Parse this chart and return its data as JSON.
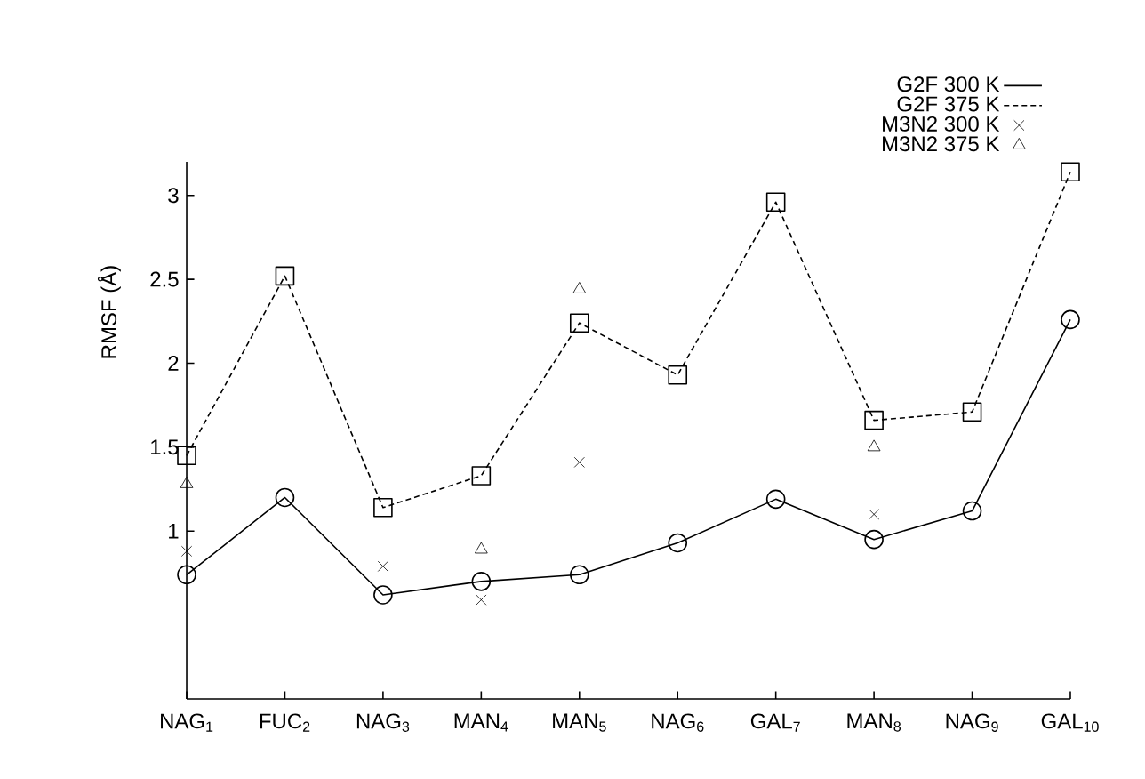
{
  "chart_data": {
    "type": "line",
    "ylabel": "RMSF (Å)",
    "categories": [
      "NAG$_{1}$",
      "FUC$_{2}$",
      "NAG$_{3}$",
      "MAN$_{4}$",
      "MAN$_{5}$",
      "NAG$_{6}$",
      "GAL$_{7}$",
      "MAN$_{8}$",
      "NAG$_{9}$",
      "GAL$_{10}$"
    ],
    "series": [
      {
        "name": "G2F 300 K",
        "color": "#000000",
        "marker": "circle",
        "line_style": "solid",
        "values": [
          0.74,
          1.2,
          0.62,
          0.7,
          0.74,
          0.93,
          1.19,
          0.95,
          1.12,
          2.26
        ]
      },
      {
        "name": "G2F 375 K",
        "color": "#000000",
        "marker": "square",
        "line_style": "dashed",
        "values": [
          1.45,
          2.52,
          1.14,
          1.33,
          2.24,
          1.93,
          2.96,
          1.66,
          1.71,
          3.14
        ]
      },
      {
        "name": "M3N2 300 K",
        "type": "scatter",
        "color": "#000000",
        "marker": "cross",
        "values": [
          0.88,
          null,
          0.79,
          0.59,
          1.41,
          null,
          null,
          1.1,
          null,
          null
        ]
      },
      {
        "name": "M3N2 375 K",
        "type": "scatter",
        "color": "#000000",
        "marker": "triangle",
        "values": [
          1.28,
          null,
          null,
          0.89,
          2.44,
          null,
          null,
          1.5,
          null,
          null
        ]
      }
    ],
    "ylim": [
      0,
      3.2
    ],
    "yticks": [
      1,
      1.5,
      2,
      2.5,
      3
    ],
    "grid": false,
    "legend": "top right"
  }
}
